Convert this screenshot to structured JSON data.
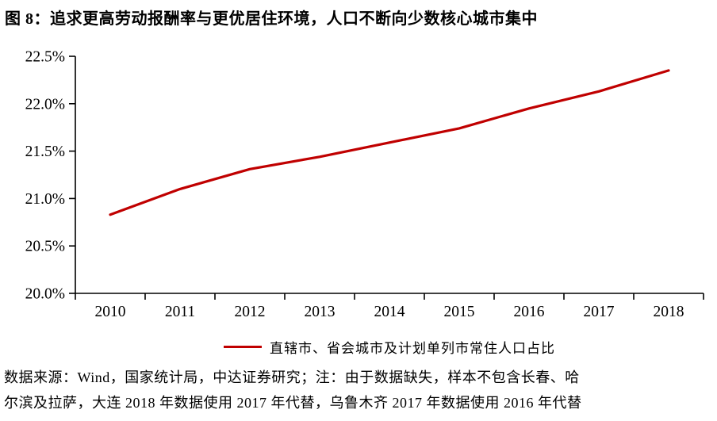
{
  "title": "图 8：追求更高劳动报酬率与更优居住环境，人口不断向少数核心城市集中",
  "chart_data": {
    "type": "line",
    "x": [
      2010,
      2011,
      2012,
      2013,
      2014,
      2015,
      2016,
      2017,
      2018
    ],
    "series": [
      {
        "name": "直辖市、省会城市及计划单列市常住人口占比",
        "values": [
          20.83,
          21.1,
          21.31,
          21.44,
          21.59,
          21.74,
          21.95,
          22.13,
          22.35
        ]
      }
    ],
    "title": "",
    "xlabel": "",
    "ylabel": "",
    "ylim": [
      20.0,
      22.5
    ],
    "ytick_step": 0.5,
    "ytick_labels": [
      "20.0%",
      "20.5%",
      "21.0%",
      "21.5%",
      "22.0%",
      "22.5%"
    ],
    "xtick_labels": [
      "2010",
      "2011",
      "2012",
      "2013",
      "2014",
      "2015",
      "2016",
      "2017",
      "2018"
    ],
    "grid": false,
    "legend_position": "bottom",
    "line_color": "#C00000",
    "axis_color": "#000000"
  },
  "legend": {
    "label": "直辖市、省会城市及计划单列市常住人口占比"
  },
  "footer": {
    "line1": "数据来源：Wind，国家统计局，中达证券研究；注：由于数据缺失，样本不包含长春、哈",
    "line2": "尔滨及拉萨，大连 2018 年数据使用 2017 年代替，乌鲁木齐 2017 年数据使用 2016 年代替"
  },
  "colors": {
    "line": "#C00000",
    "axis": "#000000",
    "text": "#000000"
  }
}
